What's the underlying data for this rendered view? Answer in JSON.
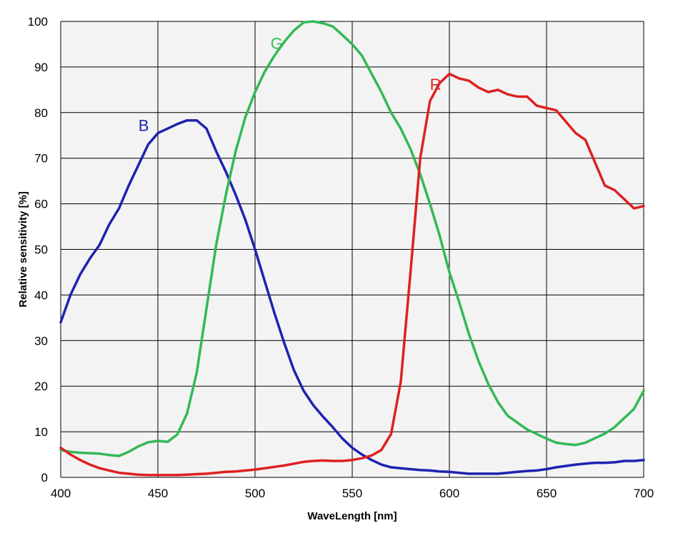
{
  "chart_data": {
    "type": "line",
    "title": "",
    "xlabel": "WaveLength [nm]",
    "ylabel": "Relative sensitivity [%]",
    "xlim": [
      400,
      700
    ],
    "ylim": [
      0,
      100
    ],
    "x_ticks": [
      400,
      450,
      500,
      550,
      600,
      650,
      700
    ],
    "y_ticks": [
      0,
      10,
      20,
      30,
      40,
      50,
      60,
      70,
      80,
      90,
      100
    ],
    "grid": true,
    "legend": "none",
    "background_color": "#f3f3f3",
    "grid_color": "#000000",
    "series": [
      {
        "name": "B",
        "color": "#1f22b0",
        "label_at": [
          440,
          76
        ],
        "points": [
          [
            400,
            34
          ],
          [
            405,
            40
          ],
          [
            410,
            44.5
          ],
          [
            415,
            48
          ],
          [
            420,
            51
          ],
          [
            425,
            55.5
          ],
          [
            430,
            59
          ],
          [
            435,
            64
          ],
          [
            440,
            68.5
          ],
          [
            445,
            73
          ],
          [
            450,
            75.5
          ],
          [
            455,
            76.5
          ],
          [
            460,
            77.5
          ],
          [
            465,
            78.3
          ],
          [
            470,
            78.3
          ],
          [
            475,
            76.5
          ],
          [
            480,
            71.5
          ],
          [
            485,
            67
          ],
          [
            490,
            62
          ],
          [
            495,
            56.5
          ],
          [
            500,
            50
          ],
          [
            505,
            43
          ],
          [
            510,
            36
          ],
          [
            515,
            29.5
          ],
          [
            520,
            23.5
          ],
          [
            525,
            19
          ],
          [
            530,
            15.8
          ],
          [
            535,
            13.3
          ],
          [
            540,
            11
          ],
          [
            545,
            8.5
          ],
          [
            550,
            6.5
          ],
          [
            555,
            5
          ],
          [
            560,
            3.8
          ],
          [
            565,
            2.8
          ],
          [
            570,
            2.2
          ],
          [
            575,
            2
          ],
          [
            580,
            1.8
          ],
          [
            585,
            1.6
          ],
          [
            590,
            1.5
          ],
          [
            595,
            1.3
          ],
          [
            600,
            1.2
          ],
          [
            605,
            1
          ],
          [
            610,
            0.8
          ],
          [
            615,
            0.8
          ],
          [
            620,
            0.8
          ],
          [
            625,
            0.8
          ],
          [
            630,
            1
          ],
          [
            635,
            1.2
          ],
          [
            640,
            1.4
          ],
          [
            645,
            1.5
          ],
          [
            650,
            1.8
          ],
          [
            655,
            2.2
          ],
          [
            660,
            2.5
          ],
          [
            665,
            2.8
          ],
          [
            670,
            3
          ],
          [
            675,
            3.2
          ],
          [
            680,
            3.2
          ],
          [
            685,
            3.3
          ],
          [
            690,
            3.6
          ],
          [
            695,
            3.6
          ],
          [
            700,
            3.8
          ]
        ]
      },
      {
        "name": "G",
        "color": "#33b956",
        "label_at": [
          508,
          94
        ],
        "points": [
          [
            400,
            6
          ],
          [
            405,
            5.6
          ],
          [
            410,
            5.4
          ],
          [
            415,
            5.3
          ],
          [
            420,
            5.2
          ],
          [
            425,
            4.9
          ],
          [
            430,
            4.7
          ],
          [
            435,
            5.6
          ],
          [
            440,
            6.8
          ],
          [
            445,
            7.7
          ],
          [
            450,
            8
          ],
          [
            455,
            7.8
          ],
          [
            460,
            9.4
          ],
          [
            465,
            14
          ],
          [
            470,
            23
          ],
          [
            475,
            37
          ],
          [
            480,
            51
          ],
          [
            485,
            62
          ],
          [
            490,
            71.5
          ],
          [
            495,
            79
          ],
          [
            500,
            84.5
          ],
          [
            505,
            89
          ],
          [
            510,
            92.5
          ],
          [
            515,
            95.5
          ],
          [
            520,
            98
          ],
          [
            525,
            99.8
          ],
          [
            530,
            100
          ],
          [
            535,
            99.6
          ],
          [
            540,
            98.9
          ],
          [
            545,
            97
          ],
          [
            550,
            95
          ],
          [
            555,
            92.5
          ],
          [
            560,
            88.5
          ],
          [
            565,
            84.5
          ],
          [
            570,
            80
          ],
          [
            575,
            76.5
          ],
          [
            580,
            72
          ],
          [
            585,
            66.5
          ],
          [
            590,
            60
          ],
          [
            595,
            53
          ],
          [
            600,
            45
          ],
          [
            605,
            38.5
          ],
          [
            610,
            31.5
          ],
          [
            615,
            25.5
          ],
          [
            620,
            20.5
          ],
          [
            625,
            16.5
          ],
          [
            630,
            13.5
          ],
          [
            635,
            12
          ],
          [
            640,
            10.5
          ],
          [
            645,
            9.5
          ],
          [
            650,
            8.5
          ],
          [
            655,
            7.6
          ],
          [
            660,
            7.3
          ],
          [
            665,
            7.1
          ],
          [
            670,
            7.6
          ],
          [
            675,
            8.6
          ],
          [
            680,
            9.6
          ],
          [
            685,
            11
          ],
          [
            690,
            13
          ],
          [
            695,
            15
          ],
          [
            700,
            19
          ]
        ]
      },
      {
        "name": "R",
        "color": "#dd2121",
        "label_at": [
          590,
          85
        ],
        "points": [
          [
            400,
            6.5
          ],
          [
            405,
            5
          ],
          [
            410,
            3.8
          ],
          [
            415,
            2.8
          ],
          [
            420,
            2
          ],
          [
            425,
            1.5
          ],
          [
            430,
            1
          ],
          [
            435,
            0.8
          ],
          [
            440,
            0.6
          ],
          [
            445,
            0.5
          ],
          [
            450,
            0.5
          ],
          [
            455,
            0.5
          ],
          [
            460,
            0.5
          ],
          [
            465,
            0.6
          ],
          [
            470,
            0.7
          ],
          [
            475,
            0.8
          ],
          [
            480,
            1
          ],
          [
            485,
            1.2
          ],
          [
            490,
            1.3
          ],
          [
            495,
            1.5
          ],
          [
            500,
            1.7
          ],
          [
            505,
            2
          ],
          [
            510,
            2.3
          ],
          [
            515,
            2.6
          ],
          [
            520,
            3
          ],
          [
            525,
            3.4
          ],
          [
            530,
            3.6
          ],
          [
            535,
            3.7
          ],
          [
            540,
            3.6
          ],
          [
            545,
            3.6
          ],
          [
            550,
            3.8
          ],
          [
            555,
            4.2
          ],
          [
            560,
            4.8
          ],
          [
            565,
            6
          ],
          [
            570,
            9.5
          ],
          [
            575,
            21
          ],
          [
            580,
            45
          ],
          [
            585,
            70
          ],
          [
            590,
            82.5
          ],
          [
            595,
            86.5
          ],
          [
            600,
            88.5
          ],
          [
            605,
            87.5
          ],
          [
            610,
            87
          ],
          [
            615,
            85.5
          ],
          [
            620,
            84.5
          ],
          [
            625,
            85
          ],
          [
            630,
            84
          ],
          [
            635,
            83.5
          ],
          [
            640,
            83.5
          ],
          [
            645,
            81.5
          ],
          [
            650,
            81
          ],
          [
            655,
            80.5
          ],
          [
            660,
            78
          ],
          [
            665,
            75.5
          ],
          [
            670,
            74
          ],
          [
            675,
            69
          ],
          [
            680,
            64
          ],
          [
            685,
            63
          ],
          [
            690,
            61
          ],
          [
            695,
            59
          ],
          [
            700,
            59.5
          ]
        ]
      }
    ]
  }
}
